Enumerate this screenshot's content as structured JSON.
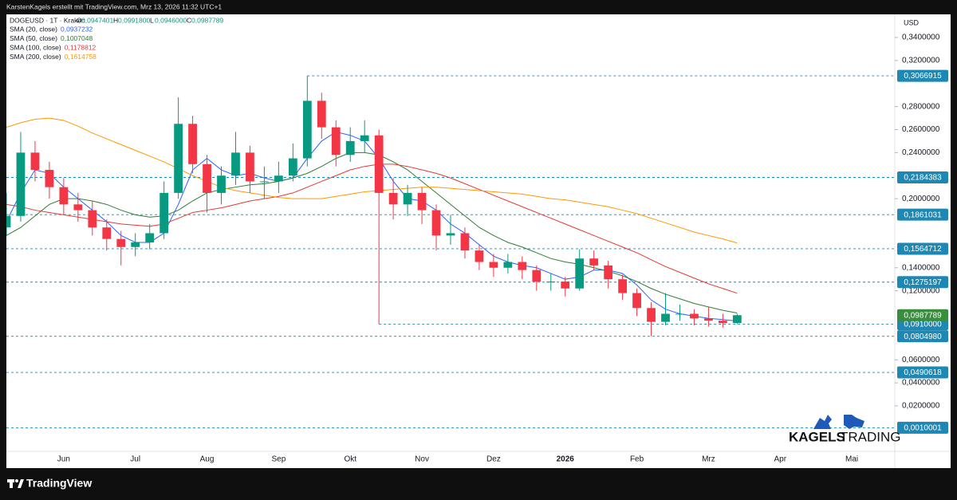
{
  "header": {
    "credit": "KarstenKagels erstellt mit TradingView.com, Mrz 13, 2026 11:32 UTC+1",
    "brand": "TradingView"
  },
  "chart_data": {
    "type": "candlestick",
    "symbol": "DOGEUSD · 1T · Kraken",
    "ohlc": [
      {
        "key": "O",
        "text": "0,0947401"
      },
      {
        "key": "H",
        "text": "0,0991800"
      },
      {
        "key": "L",
        "text": "0,0946000"
      },
      {
        "key": "C",
        "text": "0,0987789"
      }
    ],
    "unit": "USD",
    "categories": [
      null,
      null,
      null,
      null,
      "Jun",
      null,
      null,
      null,
      null,
      "Jul",
      null,
      null,
      null,
      null,
      "Aug",
      null,
      null,
      null,
      null,
      "Sep",
      null,
      null,
      null,
      null,
      "Okt",
      null,
      null,
      null,
      null,
      "Nov",
      null,
      null,
      null,
      null,
      "Dez",
      null,
      null,
      null,
      null,
      "2026",
      null,
      null,
      null,
      null,
      "Feb",
      null,
      null,
      null,
      null,
      "Mrz",
      null,
      null,
      null,
      null,
      "Apr",
      null,
      null,
      null,
      null,
      "Mai",
      null,
      null
    ],
    "up_color": "#089981",
    "down_color": "#f23645",
    "open": [
      0.175,
      0.185,
      0.24,
      0.225,
      0.21,
      0.195,
      0.19,
      0.175,
      0.165,
      0.158,
      0.162,
      0.17,
      0.205,
      0.265,
      0.23,
      0.205,
      0.22,
      0.24,
      0.215,
      0.215,
      0.22,
      0.235,
      0.285,
      0.262,
      0.238,
      0.25,
      0.255,
      0.205,
      0.195,
      0.205,
      0.19,
      0.168,
      0.17,
      0.155,
      0.145,
      0.14,
      0.145,
      0.138,
      0.128,
      0.128,
      0.122,
      0.148,
      0.142,
      0.13,
      0.118,
      0.105,
      0.093,
      0.1,
      0.1,
      0.096,
      0.094,
      0.092,
      null,
      null,
      null,
      null,
      null,
      null,
      null,
      null,
      null,
      null
    ],
    "high": [
      0.205,
      0.258,
      0.25,
      0.232,
      0.218,
      0.205,
      0.198,
      0.182,
      0.172,
      0.17,
      0.178,
      0.215,
      0.288,
      0.272,
      0.238,
      0.228,
      0.258,
      0.246,
      0.228,
      0.232,
      0.248,
      0.3066915,
      0.292,
      0.268,
      0.262,
      0.268,
      0.26,
      0.218,
      0.212,
      0.21,
      0.195,
      0.186,
      0.175,
      0.16,
      0.152,
      0.152,
      0.15,
      0.142,
      0.135,
      0.132,
      0.156,
      0.155,
      0.146,
      0.134,
      0.122,
      0.11,
      0.118,
      0.108,
      0.104,
      0.106,
      0.1,
      0.1,
      null,
      null,
      null,
      null,
      null,
      null,
      null,
      null,
      null,
      null
    ],
    "low": [
      0.168,
      0.18,
      0.215,
      0.2,
      0.186,
      0.18,
      0.168,
      0.155,
      0.142,
      0.15,
      0.156,
      0.165,
      0.2,
      0.222,
      0.188,
      0.195,
      0.212,
      0.205,
      0.2,
      0.205,
      0.215,
      0.228,
      0.252,
      0.228,
      0.232,
      0.24,
      0.091,
      0.182,
      0.185,
      0.178,
      0.155,
      0.16,
      0.148,
      0.138,
      0.132,
      0.135,
      0.13,
      0.12,
      0.12,
      0.115,
      0.12,
      0.138,
      0.122,
      0.112,
      0.098,
      0.080498,
      0.09,
      0.094,
      0.09,
      0.089,
      0.088,
      0.091,
      null,
      null,
      null,
      null,
      null,
      null,
      null,
      null,
      null,
      null
    ],
    "close": [
      0.185,
      0.24,
      0.225,
      0.21,
      0.195,
      0.19,
      0.175,
      0.165,
      0.158,
      0.162,
      0.17,
      0.205,
      0.265,
      0.23,
      0.205,
      0.22,
      0.24,
      0.215,
      0.215,
      0.22,
      0.235,
      0.285,
      0.262,
      0.238,
      0.25,
      0.255,
      0.205,
      0.195,
      0.205,
      0.19,
      0.168,
      0.17,
      0.155,
      0.145,
      0.14,
      0.145,
      0.138,
      0.128,
      0.128,
      0.122,
      0.148,
      0.142,
      0.13,
      0.118,
      0.105,
      0.093,
      0.1,
      0.1,
      0.096,
      0.094,
      0.092,
      0.0987789,
      null,
      null,
      null,
      null,
      null,
      null,
      null,
      null,
      null,
      null
    ],
    "series": [
      {
        "name": "SMA (20, close)",
        "legend_value": "0,0937232",
        "color": "#2962ff",
        "values": [
          0.18,
          0.205,
          0.225,
          0.222,
          0.21,
          0.2,
          0.19,
          0.18,
          0.168,
          0.162,
          0.162,
          0.17,
          0.195,
          0.225,
          0.235,
          0.225,
          0.22,
          0.222,
          0.218,
          0.215,
          0.218,
          0.235,
          0.25,
          0.258,
          0.255,
          0.25,
          0.235,
          0.215,
          0.2,
          0.198,
          0.19,
          0.178,
          0.17,
          0.16,
          0.15,
          0.145,
          0.142,
          0.14,
          0.135,
          0.13,
          0.132,
          0.138,
          0.138,
          0.135,
          0.125,
          0.112,
          0.104,
          0.1,
          0.098,
          0.096,
          0.095,
          0.0937232,
          null,
          null,
          null,
          null,
          null,
          null,
          null,
          null,
          null,
          null
        ]
      },
      {
        "name": "SMA (50, close)",
        "legend_value": "0,1007048",
        "color": "#2e7d32",
        "values": [
          0.168,
          0.175,
          0.185,
          0.195,
          0.2,
          0.2,
          0.198,
          0.195,
          0.19,
          0.186,
          0.184,
          0.185,
          0.19,
          0.198,
          0.205,
          0.208,
          0.21,
          0.212,
          0.213,
          0.215,
          0.218,
          0.222,
          0.228,
          0.235,
          0.24,
          0.24,
          0.238,
          0.232,
          0.225,
          0.215,
          0.205,
          0.195,
          0.185,
          0.175,
          0.168,
          0.162,
          0.158,
          0.153,
          0.148,
          0.145,
          0.143,
          0.14,
          0.137,
          0.133,
          0.128,
          0.122,
          0.117,
          0.113,
          0.109,
          0.106,
          0.103,
          0.1007048,
          null,
          null,
          null,
          null,
          null,
          null,
          null,
          null,
          null,
          null
        ]
      },
      {
        "name": "SMA (100, close)",
        "legend_value": "0,1178812",
        "color": "#e53935",
        "values": [
          0.195,
          0.193,
          0.19,
          0.188,
          0.186,
          0.184,
          0.182,
          0.18,
          0.178,
          0.177,
          0.176,
          0.178,
          0.183,
          0.188,
          0.19,
          0.192,
          0.195,
          0.198,
          0.2,
          0.202,
          0.205,
          0.21,
          0.215,
          0.22,
          0.225,
          0.228,
          0.23,
          0.23,
          0.228,
          0.225,
          0.222,
          0.218,
          0.213,
          0.208,
          0.203,
          0.198,
          0.193,
          0.188,
          0.183,
          0.178,
          0.173,
          0.168,
          0.163,
          0.158,
          0.153,
          0.147,
          0.141,
          0.136,
          0.131,
          0.126,
          0.122,
          0.1178812,
          null,
          null,
          null,
          null,
          null,
          null,
          null,
          null,
          null,
          null
        ]
      },
      {
        "name": "SMA (200, close)",
        "legend_value": "0,1614758",
        "color": "#ff9800",
        "values": [
          0.262,
          0.266,
          0.269,
          0.27,
          0.268,
          0.263,
          0.257,
          0.252,
          0.247,
          0.242,
          0.237,
          0.232,
          0.226,
          0.22,
          0.215,
          0.21,
          0.207,
          0.205,
          0.203,
          0.201,
          0.2,
          0.2,
          0.2,
          0.202,
          0.204,
          0.206,
          0.207,
          0.208,
          0.209,
          0.21,
          0.21,
          0.209,
          0.208,
          0.207,
          0.206,
          0.205,
          0.204,
          0.202,
          0.2,
          0.199,
          0.197,
          0.195,
          0.193,
          0.19,
          0.187,
          0.183,
          0.179,
          0.175,
          0.171,
          0.168,
          0.165,
          0.1614758,
          null,
          null,
          null,
          null,
          null,
          null,
          null,
          null,
          null,
          null
        ]
      }
    ],
    "ylim": [
      -0.0195,
      0.3601
    ],
    "yticks": [
      {
        "value": 0.34,
        "label": "0,3400000"
      },
      {
        "value": 0.32,
        "label": "0,3200000"
      },
      {
        "value": 0.28,
        "label": "0,2800000"
      },
      {
        "value": 0.26,
        "label": "0,2600000"
      },
      {
        "value": 0.24,
        "label": "0,2400000"
      },
      {
        "value": 0.2,
        "label": "0,2000000"
      },
      {
        "value": 0.14,
        "label": "0,1400000"
      },
      {
        "value": 0.12,
        "label": "0,1200000"
      },
      {
        "value": 0.06,
        "label": "0,0600000"
      },
      {
        "value": 0.04,
        "label": "0,0400000"
      },
      {
        "value": 0.02,
        "label": "0,0200000"
      }
    ],
    "levels": [
      {
        "value": 0.3066915,
        "label": "0,3066915"
      },
      {
        "value": 0.2184383,
        "label": "0,2184383"
      },
      {
        "value": 0.1861031,
        "label": "0,1861031"
      },
      {
        "value": 0.1564712,
        "label": "0,1564712"
      },
      {
        "value": 0.1275197,
        "label": "0,1275197"
      },
      {
        "value": 0.091,
        "label": "0,0910000"
      },
      {
        "value": 0.080498,
        "label": "0,0804980"
      },
      {
        "value": 0.0490618,
        "label": "0,0490618"
      },
      {
        "value": 0.0010001,
        "label": "0,0010001"
      }
    ],
    "level_color": "#1e88b4",
    "last_price": {
      "value": 0.0987789,
      "label": "0,0987789"
    },
    "last_color": "#388e3c",
    "grid": false,
    "watermark": {
      "left": "KAGELS",
      "right": "TRADING"
    }
  }
}
